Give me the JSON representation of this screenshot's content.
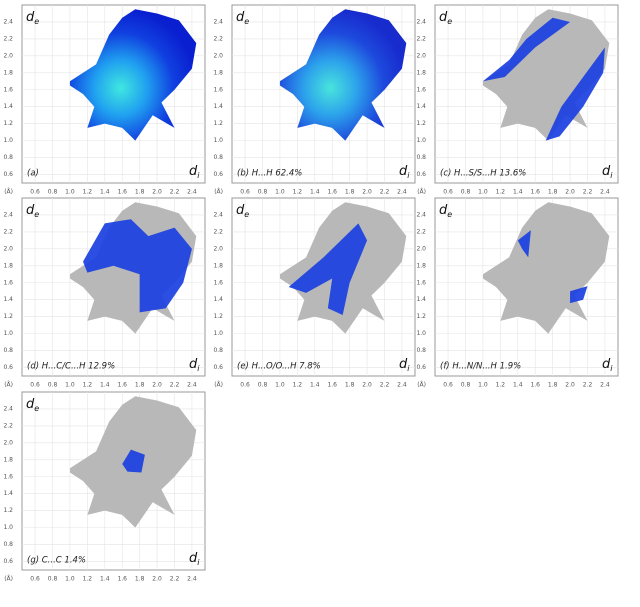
{
  "chart_data": {
    "type": "fingerprint",
    "xlim": [
      0.45,
      2.55
    ],
    "ylim": [
      0.5,
      2.6
    ],
    "xticks": [
      0.6,
      0.8,
      {
        "value": 1,
        "label": "1.0"
      },
      1.2,
      1.4,
      1.6,
      1.8,
      {
        "value": 2,
        "label": "2.0"
      },
      2.2,
      2.4
    ],
    "yticks": [
      0.6,
      0.8,
      {
        "value": 1,
        "label": "1.0"
      },
      1.2,
      1.4,
      1.6,
      1.8,
      {
        "value": 2,
        "label": "2.0"
      },
      2.2,
      2.4
    ],
    "x_unit": "(Å)",
    "xlabel": "d",
    "xlabel_sub": "i",
    "ylabel": "d",
    "ylabel_sub": "e",
    "grid": true,
    "panels": [
      {
        "label": "(a)"
      },
      {
        "label": "(b)  H...H  62.4%"
      },
      {
        "label": "(c)  H...S/S...H  13.6%"
      },
      {
        "label": "(d)  H...C/C...H  12.9%"
      },
      {
        "label": "(e)  H...O/O...H  7.8%"
      },
      {
        "label": "(f)  H...N/N...H  1.9%"
      },
      {
        "label": "(g)  C...C  1.4%"
      }
    ]
  }
}
